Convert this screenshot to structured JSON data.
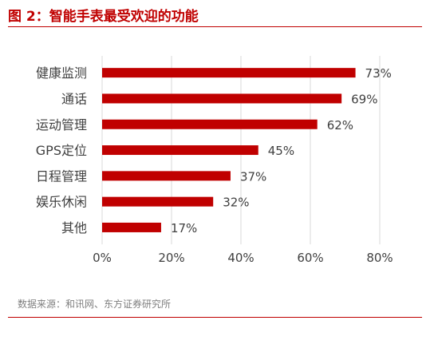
{
  "figure": {
    "title": "图 2：智能手表最受欢迎的功能",
    "source": "数据来源：和讯网、东方证券研究所"
  },
  "chart_data": {
    "type": "bar",
    "orientation": "horizontal",
    "categories": [
      "健康监测",
      "通话",
      "运动管理",
      "GPS定位",
      "日程管理",
      "娱乐休闲",
      "其他"
    ],
    "values": [
      73,
      69,
      62,
      45,
      37,
      32,
      17
    ],
    "value_labels": [
      "73%",
      "69%",
      "62%",
      "45%",
      "37%",
      "32%",
      "17%"
    ],
    "x_ticks": [
      0,
      20,
      40,
      60,
      80
    ],
    "x_tick_labels": [
      "0%",
      "20%",
      "40%",
      "60%",
      "80%"
    ],
    "xlim": [
      0,
      80
    ],
    "grid": "vertical",
    "legend": "none",
    "colors": {
      "bar": "#c00000",
      "grid": "#d9d9d9",
      "text": "#404040",
      "title": "#c00000"
    }
  }
}
